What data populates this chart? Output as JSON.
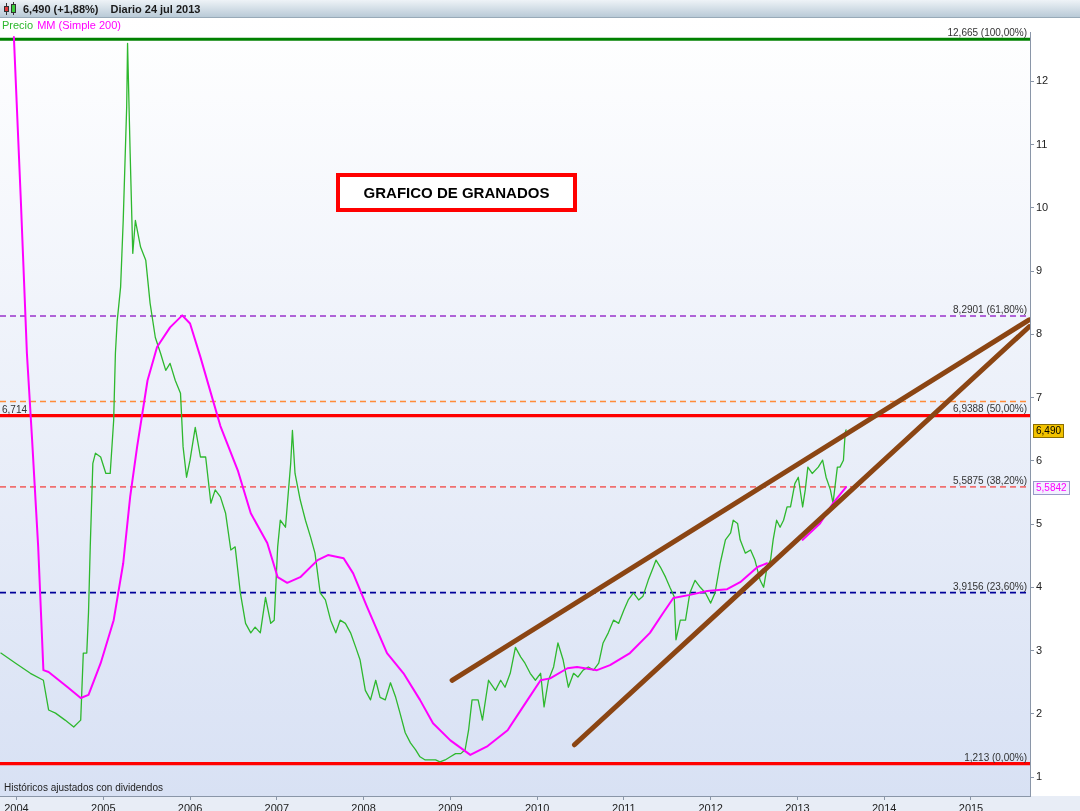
{
  "chart_data": {
    "type": "line",
    "title": "6,490 (+1,88%)",
    "subtitle": "Diario 24 jul 2013",
    "legend": "top left",
    "marker": "none",
    "xlim": [
      2003.81,
      2015.68
    ],
    "xticks": [
      2004,
      2005,
      2006,
      2007,
      2008,
      2009,
      2010,
      2011,
      2012,
      2013,
      2014,
      2015
    ],
    "ylim": [
      0.7,
      12.78
    ],
    "yticks": [
      1,
      2,
      3,
      4,
      5,
      6,
      7,
      8,
      9,
      10,
      11,
      12
    ],
    "series": [
      {
        "name": "Precio",
        "color": "#2eb82e",
        "x": [
          2003.82,
          2003.99,
          2004.16,
          2004.31,
          2004.37,
          2004.45,
          2004.56,
          2004.66,
          2004.74,
          2004.77,
          2004.81,
          2004.83,
          2004.85,
          2004.88,
          2004.91,
          2004.97,
          2005.03,
          2005.08,
          2005.12,
          2005.14,
          2005.16,
          2005.2,
          2005.23,
          2005.27,
          2005.28,
          2005.31,
          2005.34,
          2005.37,
          2005.43,
          2005.49,
          2005.54,
          2005.6,
          2005.66,
          2005.72,
          2005.77,
          2005.83,
          2005.89,
          2005.92,
          2005.96,
          2006.0,
          2006.06,
          2006.12,
          2006.18,
          2006.24,
          2006.29,
          2006.35,
          2006.41,
          2006.47,
          2006.52,
          2006.58,
          2006.64,
          2006.7,
          2006.75,
          2006.81,
          2006.87,
          2006.93,
          2006.97,
          2007.01,
          2007.04,
          2007.1,
          2007.16,
          2007.18,
          2007.21,
          2007.27,
          2007.33,
          2007.39,
          2007.44,
          2007.5,
          2007.56,
          2007.62,
          2007.68,
          2007.73,
          2007.79,
          2007.85,
          2007.91,
          2007.96,
          2008.02,
          2008.08,
          2008.14,
          2008.19,
          2008.25,
          2008.31,
          2008.37,
          2008.42,
          2008.48,
          2008.54,
          2008.6,
          2008.65,
          2008.71,
          2008.77,
          2008.83,
          2008.88,
          2008.94,
          2009.0,
          2009.06,
          2009.12,
          2009.17,
          2009.21,
          2009.25,
          2009.32,
          2009.37,
          2009.44,
          2009.52,
          2009.58,
          2009.63,
          2009.69,
          2009.75,
          2009.81,
          2009.86,
          2009.92,
          2009.98,
          2010.04,
          2010.08,
          2010.13,
          2010.19,
          2010.24,
          2010.3,
          2010.36,
          2010.42,
          2010.47,
          2010.53,
          2010.59,
          2010.65,
          2010.71,
          2010.76,
          2010.82,
          2010.88,
          2010.94,
          2011.0,
          2011.05,
          2011.11,
          2011.17,
          2011.22,
          2011.28,
          2011.34,
          2011.37,
          2011.42,
          2011.48,
          2011.53,
          2011.58,
          2011.6,
          2011.65,
          2011.71,
          2011.76,
          2011.82,
          2011.88,
          2011.94,
          2012.0,
          2012.05,
          2012.11,
          2012.17,
          2012.23,
          2012.26,
          2012.31,
          2012.34,
          2012.4,
          2012.46,
          2012.51,
          2012.57,
          2012.61,
          2012.65,
          2012.69,
          2012.72,
          2012.76,
          2012.8,
          2012.84,
          2012.88,
          2012.92,
          2012.97,
          2013.01,
          2013.06,
          2013.09,
          2013.12,
          2013.17,
          2013.24,
          2013.29,
          2013.33,
          2013.38,
          2013.41,
          2013.46,
          2013.49,
          2013.53,
          2013.55,
          2013.56
        ],
        "values": [
          2.96,
          2.8,
          2.64,
          2.53,
          2.06,
          2.01,
          1.9,
          1.79,
          1.9,
          2.96,
          2.96,
          3.6,
          4.64,
          5.96,
          6.12,
          6.06,
          5.8,
          5.8,
          6.64,
          7.7,
          8.2,
          8.75,
          9.8,
          11.6,
          12.6,
          10.86,
          9.28,
          9.8,
          9.38,
          9.17,
          8.49,
          7.95,
          7.7,
          7.43,
          7.54,
          7.27,
          7.07,
          6.22,
          5.74,
          6.01,
          6.53,
          6.06,
          6.06,
          5.33,
          5.54,
          5.43,
          5.17,
          4.59,
          4.64,
          3.91,
          3.43,
          3.28,
          3.37,
          3.28,
          3.84,
          3.43,
          3.48,
          4.64,
          5.06,
          4.95,
          5.96,
          6.48,
          5.8,
          5.38,
          5.06,
          4.79,
          4.54,
          3.91,
          3.8,
          3.48,
          3.28,
          3.48,
          3.43,
          3.28,
          3.05,
          2.85,
          2.37,
          2.22,
          2.53,
          2.26,
          2.22,
          2.49,
          2.26,
          2.01,
          1.7,
          1.54,
          1.43,
          1.32,
          1.27,
          1.27,
          1.27,
          1.24,
          1.27,
          1.32,
          1.37,
          1.37,
          1.43,
          1.74,
          2.22,
          2.22,
          1.9,
          2.53,
          2.37,
          2.53,
          2.42,
          2.64,
          3.05,
          2.9,
          2.8,
          2.64,
          2.53,
          2.64,
          2.11,
          2.53,
          2.74,
          3.12,
          2.85,
          2.42,
          2.64,
          2.58,
          2.69,
          2.74,
          2.69,
          2.8,
          3.12,
          3.28,
          3.48,
          3.43,
          3.64,
          3.8,
          3.91,
          3.8,
          3.86,
          4.11,
          4.32,
          4.43,
          4.32,
          4.16,
          4.0,
          3.85,
          3.17,
          3.48,
          3.48,
          3.91,
          4.11,
          4.0,
          3.91,
          3.75,
          3.91,
          4.38,
          4.75,
          4.86,
          5.06,
          5.01,
          4.75,
          4.54,
          4.59,
          4.43,
          4.11,
          4.0,
          4.32,
          4.43,
          4.75,
          5.06,
          4.95,
          5.06,
          5.27,
          5.27,
          5.64,
          5.74,
          5.27,
          5.54,
          5.9,
          5.8,
          5.9,
          6.01,
          5.74,
          5.54,
          5.33,
          5.9,
          5.9,
          6.01,
          6.44,
          6.49
        ]
      },
      {
        "name": "MM (Simple 200)",
        "color": "#ff00ff",
        "x": [
          2003.97,
          2004.05,
          2004.12,
          2004.18,
          2004.25,
          2004.31,
          2004.37,
          2004.59,
          2004.74,
          2004.83,
          2004.97,
          2005.12,
          2005.23,
          2005.31,
          2005.39,
          2005.51,
          2005.62,
          2005.77,
          2005.91,
          2006.0,
          2006.12,
          2006.24,
          2006.35,
          2006.55,
          2006.7,
          2006.89,
          2007.01,
          2007.12,
          2007.27,
          2007.47,
          2007.59,
          2007.77,
          2007.88,
          2008.04,
          2008.27,
          2008.46,
          2008.65,
          2008.8,
          2009.0,
          2009.23,
          2009.43,
          2009.66,
          2009.89,
          2010.04,
          2010.15,
          2010.35,
          2010.46,
          2010.69,
          2010.84,
          2011.07,
          2011.3,
          2011.45,
          2011.57,
          2011.76,
          2011.96,
          2012.19,
          2012.34,
          2012.54,
          2012.65,
          2012.86,
          2013.06,
          2013.26,
          2013.41,
          2013.56
        ],
        "values": [
          12.7,
          10.12,
          7.7,
          6.33,
          4.64,
          2.69,
          2.66,
          2.42,
          2.25,
          2.3,
          2.8,
          3.48,
          4.38,
          5.43,
          6.22,
          7.27,
          7.8,
          8.11,
          8.3,
          8.17,
          7.64,
          7.07,
          6.55,
          5.85,
          5.17,
          4.7,
          4.16,
          4.07,
          4.16,
          4.43,
          4.51,
          4.46,
          4.22,
          3.69,
          2.96,
          2.64,
          2.22,
          1.85,
          1.58,
          1.35,
          1.49,
          1.74,
          2.22,
          2.53,
          2.56,
          2.72,
          2.74,
          2.69,
          2.77,
          2.96,
          3.28,
          3.59,
          3.83,
          3.88,
          3.94,
          3.97,
          4.08,
          4.32,
          4.38,
          null,
          4.75,
          5.01,
          5.33,
          5.5842
        ]
      },
      {
        "color": "#8b4513",
        "x": [
          2009.02,
          2015.67
        ],
        "values": [
          2.53,
          8.23
        ]
      },
      {
        "color": "#8b4513",
        "x": [
          2010.43,
          2015.67
        ],
        "values": [
          1.51,
          8.12
        ]
      }
    ],
    "ref_lines": [
      {
        "axis": "y",
        "value": 12.665,
        "label": "12,665 (100,00%)",
        "color": "#008000"
      },
      {
        "axis": "y",
        "value": 8.2901,
        "color": "#9933cc",
        "line_style": "dashed"
      },
      {
        "axis": "y",
        "value": 6.9388,
        "color": "#ff8c3a",
        "line_style": "dashed"
      },
      {
        "axis": "y",
        "value": 6.714,
        "label": "6,714",
        "color": "#ff0000"
      },
      {
        "axis": "y",
        "value": 5.5875,
        "color": "#f07070",
        "line_style": "dashed"
      },
      {
        "axis": "y",
        "value": 3.9156,
        "color": "#000099",
        "line_style": "dashed"
      },
      {
        "axis": "y",
        "value": 1.213,
        "label": "1,213 (0,00%)",
        "color": "#ff0000"
      }
    ],
    "annotations": [
      "GRAFICO DE GRANADOS",
      "Históricos ajustados con dividendos",
      "6,490",
      "5,5842",
      {
        "text": "8,2901 (61,80%)",
        "y": 8.2901
      },
      {
        "text": "6,9388 (50,00%)",
        "y": 6.9388
      },
      {
        "text": "5,5875 (38,20%)",
        "y": 5.5875
      },
      {
        "text": "3,9156 (23,60%)",
        "y": 3.9156
      }
    ]
  }
}
